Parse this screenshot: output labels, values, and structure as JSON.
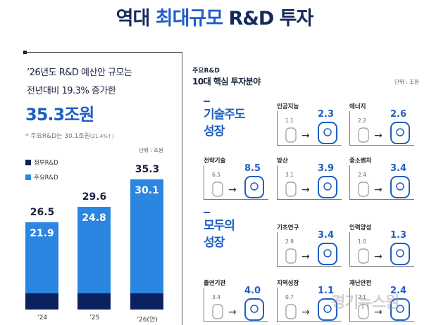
{
  "title": {
    "part1": "역대 ",
    "part2": "최대규모",
    "part3": " R&D 투자"
  },
  "left": {
    "line1": "’26년도 R&D 예산안 규모는",
    "line2": "전년대비 19.3% 증가한",
    "headline": "35.3조원",
    "note": "* 주요R&D는 30.1조원",
    "note_small": "(21.4%↑)",
    "unit": "단위 : 조원",
    "legend": [
      {
        "label": "정부R&D",
        "color": "#0c2260"
      },
      {
        "label": "주요R&D",
        "color": "#2a86e0"
      }
    ]
  },
  "chart_data": {
    "type": "bar",
    "categories": [
      "’24",
      "’25",
      "’26(안)"
    ],
    "series": [
      {
        "name": "정부R&D",
        "values": [
          26.5,
          29.6,
          35.3
        ]
      },
      {
        "name": "주요R&D",
        "values": [
          21.9,
          24.8,
          30.1
        ]
      }
    ],
    "ylabel": "단위 : 조원"
  },
  "right": {
    "header_small": "주요R&D",
    "header": "10대 핵심 투자분야",
    "unit": "단위 : 조원",
    "groups": [
      {
        "line1": "기술주도",
        "line2": "성장"
      },
      {
        "line1": "모두의",
        "line2": "성장"
      }
    ],
    "cards": [
      {
        "name": "인공지능",
        "old": "1.1",
        "new": "2.3",
        "icon": "ai-head-icon"
      },
      {
        "name": "에너지",
        "old": "2.2",
        "new": "2.6",
        "icon": "lightbulb-icon"
      },
      {
        "name": "전략기술",
        "old": "6.5",
        "new": "8.5",
        "icon": "fingerprint-icon"
      },
      {
        "name": "방산",
        "old": "3.1",
        "new": "3.9",
        "icon": "tank-icon"
      },
      {
        "name": "중소벤처",
        "old": "2.4",
        "new": "3.4",
        "icon": "building-icon"
      },
      {
        "name": "기초연구",
        "old": "2.9",
        "new": "3.4",
        "icon": "microscope-icon"
      },
      {
        "name": "인력양성",
        "old": "1.0",
        "new": "1.3",
        "icon": "person-growth-icon"
      },
      {
        "name": "출연기관",
        "old": "3.4",
        "new": "4.0",
        "icon": "office-building-icon"
      },
      {
        "name": "지역성장",
        "old": "0.7",
        "new": "1.1",
        "icon": "korea-map-icon"
      },
      {
        "name": "재난안전",
        "old": "2.1",
        "new": "2.4",
        "icon": "shield-icon"
      }
    ]
  },
  "watermark": "경기뉴스원"
}
